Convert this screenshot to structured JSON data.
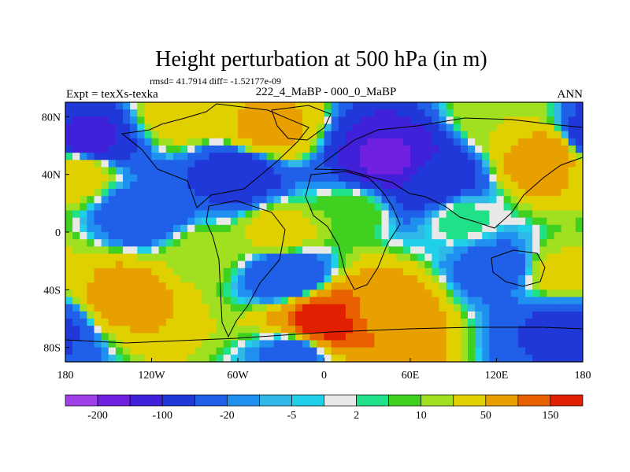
{
  "chart_data": {
    "type": "heatmap",
    "title": "Height perturbation at 500 hPa (in m)",
    "stats": "rmsd= 41.7914 diff= -1.52177e-09",
    "left_label": "Expt = texXs-texka",
    "center_label": "222_4_MaBP - 000_0_MaBP",
    "right_label": "ANN",
    "xlim": [
      -180,
      180
    ],
    "ylim": [
      -90,
      90
    ],
    "x_ticks": [
      {
        "value": -180,
        "label": "180"
      },
      {
        "value": -120,
        "label": "120W"
      },
      {
        "value": -60,
        "label": "60W"
      },
      {
        "value": 0,
        "label": "0"
      },
      {
        "value": 60,
        "label": "60E"
      },
      {
        "value": 120,
        "label": "120E"
      },
      {
        "value": 180,
        "label": "180"
      }
    ],
    "y_ticks": [
      {
        "value": 80,
        "label": "80N"
      },
      {
        "value": 40,
        "label": "40N"
      },
      {
        "value": 0,
        "label": "0"
      },
      {
        "value": -40,
        "label": "40S"
      },
      {
        "value": -80,
        "label": "80S"
      }
    ],
    "colorbar": {
      "levels": [
        -200,
        -150,
        -100,
        -50,
        -20,
        -10,
        -5,
        -2,
        2,
        5,
        10,
        20,
        50,
        100,
        150
      ],
      "labels": [
        {
          "after_bin": 1,
          "text": "-200"
        },
        {
          "after_bin": 3,
          "text": "-100"
        },
        {
          "after_bin": 5,
          "text": "-20"
        },
        {
          "after_bin": 7,
          "text": "-5"
        },
        {
          "after_bin": 9,
          "text": "2"
        },
        {
          "after_bin": 11,
          "text": "10"
        },
        {
          "after_bin": 13,
          "text": "50"
        },
        {
          "after_bin": 15,
          "text": "150"
        }
      ],
      "colors": [
        "#a040e8",
        "#7020e0",
        "#4020d8",
        "#2038d8",
        "#2060e8",
        "#2090f0",
        "#30b8e8",
        "#20d0e8",
        "#e8e8e8",
        "#20e088",
        "#40d020",
        "#a0e020",
        "#e0d000",
        "#e8a000",
        "#e86000",
        "#e02000"
      ]
    },
    "field_centers": [
      {
        "lon": -165,
        "lat": 62,
        "value": -130
      },
      {
        "lon": -170,
        "lat": 45,
        "value": 40
      },
      {
        "lon": -125,
        "lat": 12,
        "value": -40
      },
      {
        "lon": -140,
        "lat": -43,
        "value": 70
      },
      {
        "lon": -40,
        "lat": 70,
        "value": 60
      },
      {
        "lon": -60,
        "lat": 40,
        "value": -80
      },
      {
        "lon": -30,
        "lat": 0,
        "value": 30
      },
      {
        "lon": -85,
        "lat": -15,
        "value": 15
      },
      {
        "lon": -25,
        "lat": -30,
        "value": -50
      },
      {
        "lon": 0,
        "lat": -62,
        "value": 180
      },
      {
        "lon": 40,
        "lat": -55,
        "value": 90
      },
      {
        "lon": 45,
        "lat": 50,
        "value": -160
      },
      {
        "lon": 75,
        "lat": 35,
        "value": -90
      },
      {
        "lon": 95,
        "lat": 10,
        "value": 5
      },
      {
        "lon": 20,
        "lat": 15,
        "value": 10
      },
      {
        "lon": 155,
        "lat": 50,
        "value": 90
      },
      {
        "lon": 120,
        "lat": -25,
        "value": -30
      },
      {
        "lon": 165,
        "lat": -30,
        "value": 25
      },
      {
        "lon": 165,
        "lat": -65,
        "value": -60
      },
      {
        "lon": -20,
        "lat": -85,
        "value": -30
      },
      {
        "lon": 120,
        "lat": 80,
        "value": 20
      },
      {
        "lon": -100,
        "lat": 80,
        "value": 30
      }
    ]
  }
}
